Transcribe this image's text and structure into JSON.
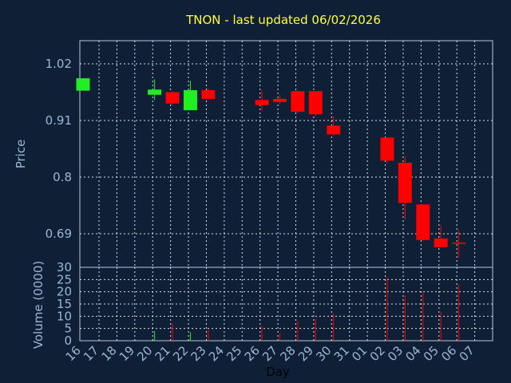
{
  "chart_data": [
    {
      "type": "candlestick",
      "title": "TNON - last updated 06/02/2026",
      "ylabel": "Price",
      "ylim": [
        0.625,
        1.065
      ],
      "yticks": [
        0.69,
        0.8,
        0.91,
        1.02
      ],
      "ytick_labels": [
        "0.69",
        "0.8",
        "0.91",
        "1.02"
      ],
      "up_color": "#22ee22",
      "down_color": "#ff0000",
      "candles": [
        {
          "day": "16",
          "open": 0.968,
          "close": 0.992,
          "high": 0.992,
          "low": 0.968
        },
        {
          "day": "20",
          "open": 0.96,
          "close": 0.97,
          "high": 0.99,
          "low": 0.95
        },
        {
          "day": "21",
          "open": 0.965,
          "close": 0.943,
          "high": 0.967,
          "low": 0.94
        },
        {
          "day": "22",
          "open": 0.93,
          "close": 0.969,
          "high": 0.987,
          "low": 0.93
        },
        {
          "day": "23",
          "open": 0.969,
          "close": 0.952,
          "high": 0.972,
          "low": 0.95
        },
        {
          "day": "26",
          "open": 0.95,
          "close": 0.94,
          "high": 0.968,
          "low": 0.929
        },
        {
          "day": "27",
          "open": 0.952,
          "close": 0.946,
          "high": 0.96,
          "low": 0.942
        },
        {
          "day": "28",
          "open": 0.967,
          "close": 0.927,
          "high": 0.967,
          "low": 0.924
        },
        {
          "day": "29",
          "open": 0.967,
          "close": 0.922,
          "high": 0.967,
          "low": 0.918
        },
        {
          "day": "30",
          "open": 0.9,
          "close": 0.883,
          "high": 0.917,
          "low": 0.88
        },
        {
          "day": "02",
          "open": 0.877,
          "close": 0.832,
          "high": 0.877,
          "low": 0.827
        },
        {
          "day": "03",
          "open": 0.828,
          "close": 0.75,
          "high": 0.84,
          "low": 0.718
        },
        {
          "day": "04",
          "open": 0.747,
          "close": 0.678,
          "high": 0.747,
          "low": 0.676
        },
        {
          "day": "05",
          "open": 0.681,
          "close": 0.664,
          "high": 0.706,
          "low": 0.664
        },
        {
          "day": "06",
          "open": 0.673,
          "close": 0.671,
          "high": 0.698,
          "low": 0.643
        }
      ]
    },
    {
      "type": "bar",
      "xlabel": "Day",
      "ylabel": "Volume (0000)",
      "ylim": [
        0,
        30
      ],
      "yticks": [
        0,
        5,
        10,
        15,
        20,
        25,
        30
      ],
      "ytick_labels": [
        "0",
        "5",
        "10",
        "15",
        "20",
        "25",
        "30"
      ],
      "categories": [
        "16",
        "17",
        "18",
        "19",
        "20",
        "21",
        "22",
        "23",
        "24",
        "25",
        "26",
        "27",
        "28",
        "29",
        "30",
        "31",
        "01",
        "02",
        "03",
        "04",
        "05",
        "06",
        "07"
      ],
      "bars": [
        {
          "day": "20",
          "value": 4,
          "color": "#22ee22"
        },
        {
          "day": "21",
          "value": 7,
          "color": "#ff0000"
        },
        {
          "day": "22",
          "value": 3.5,
          "color": "#22ee22"
        },
        {
          "day": "23",
          "value": 4.5,
          "color": "#ff0000"
        },
        {
          "day": "26",
          "value": 6,
          "color": "#ff0000"
        },
        {
          "day": "27",
          "value": 3,
          "color": "#ff0000"
        },
        {
          "day": "28",
          "value": 8,
          "color": "#ff0000"
        },
        {
          "day": "29",
          "value": 9,
          "color": "#ff0000"
        },
        {
          "day": "30",
          "value": 11,
          "color": "#ff0000"
        },
        {
          "day": "02",
          "value": 26,
          "color": "#ff0000"
        },
        {
          "day": "03",
          "value": 18.5,
          "color": "#ff0000"
        },
        {
          "day": "04",
          "value": 20,
          "color": "#ff0000"
        },
        {
          "day": "05",
          "value": 12,
          "color": "#ff0000"
        },
        {
          "day": "06",
          "value": 23,
          "color": "#ff0000"
        }
      ]
    }
  ]
}
